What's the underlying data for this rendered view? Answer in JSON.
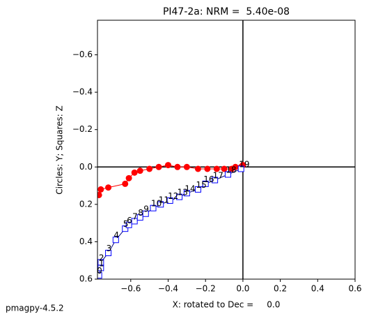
{
  "chart_data": {
    "type": "scatter",
    "title": "PI47-2a: NRM =  5.40e-08",
    "xlabel": "X: rotated to Dec =     0.0",
    "ylabel": "Circles: Y; Squares: Z",
    "footer": "pmagpy-4.5.2",
    "xlim": [
      -0.778,
      0.6
    ],
    "ylim": [
      -0.785,
      0.6
    ],
    "y_inverted": true,
    "xticks": [
      {
        "value": -0.6,
        "label": "−0.6"
      },
      {
        "value": -0.4,
        "label": "−0.4"
      },
      {
        "value": -0.2,
        "label": "−0.2"
      },
      {
        "value": 0,
        "label": "0.0"
      },
      0.2,
      0.4,
      0.6
    ],
    "yticks": [
      {
        "value": -0.6,
        "label": "−0.6"
      },
      {
        "value": -0.4,
        "label": "−0.4"
      },
      {
        "value": -0.2,
        "label": "−0.2"
      },
      {
        "value": 0,
        "label": "0.0"
      },
      0.2,
      0.4,
      0.6
    ],
    "series": [
      {
        "color": "#ff0000",
        "marker": "circle",
        "x": [
          -0.77,
          -0.76,
          -0.72,
          -0.63,
          -0.61,
          -0.58,
          -0.55,
          -0.5,
          -0.45,
          -0.4,
          -0.35,
          -0.3,
          -0.24,
          -0.19,
          -0.14,
          -0.1,
          -0.06,
          -0.04,
          -0.01,
          0
        ],
        "values": [
          0.15,
          0.12,
          0.11,
          0.09,
          0.06,
          0.03,
          0.02,
          0.01,
          0,
          -0.01,
          0,
          0,
          0.01,
          0.01,
          0.01,
          0.01,
          0.01,
          0,
          0,
          -0.01
        ]
      },
      {
        "color": "#0000ff",
        "marker": "square",
        "x": [
          -0.77,
          -0.76,
          -0.76,
          -0.72,
          -0.68,
          -0.63,
          -0.61,
          -0.58,
          -0.55,
          -0.52,
          -0.48,
          -0.44,
          -0.39,
          -0.34,
          -0.3,
          -0.24,
          -0.2,
          -0.15,
          -0.08,
          -0.01
        ],
        "values": [
          0.58,
          0.54,
          0.51,
          0.46,
          0.39,
          0.33,
          0.31,
          0.29,
          0.27,
          0.25,
          0.22,
          0.2,
          0.18,
          0.16,
          0.14,
          0.12,
          0.09,
          0.07,
          0.04,
          0.01
        ],
        "point_labels": [
          "0",
          "1",
          "2",
          "3",
          "4",
          "5",
          "6",
          "7",
          "8",
          "9",
          "10",
          "11",
          "12",
          "13",
          "14",
          "15",
          "16",
          "17",
          "18",
          "19"
        ]
      }
    ]
  }
}
